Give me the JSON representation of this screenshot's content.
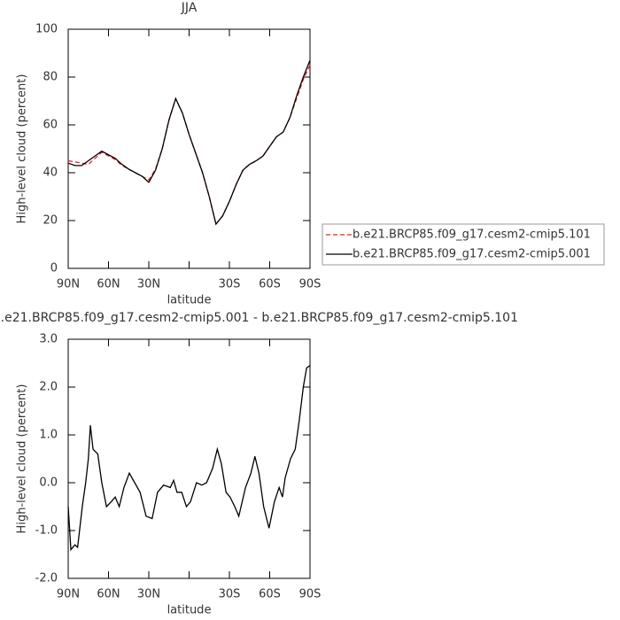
{
  "chart_data": [
    {
      "type": "line",
      "title": "JJA",
      "x_label": "latitude",
      "y_label": "High-level cloud (percent)",
      "xlim": [
        90,
        -90
      ],
      "ylim": [
        0,
        100
      ],
      "xticks": [
        {
          "value": 90,
          "label": "90N"
        },
        {
          "value": 60,
          "label": "60N"
        },
        {
          "value": 30,
          "label": "30N"
        },
        {
          "value": 0,
          "label": null
        },
        {
          "value": -30,
          "label": "30S"
        },
        {
          "value": -60,
          "label": "60S"
        },
        {
          "value": -90,
          "label": "90S"
        }
      ],
      "yticks": [
        0,
        20,
        40,
        60,
        80,
        100
      ],
      "legend": "right",
      "x": [
        90,
        85,
        80,
        75,
        70,
        65,
        60,
        55,
        50,
        45,
        40,
        35,
        30,
        25,
        20,
        15,
        10,
        5,
        0,
        -5,
        -10,
        -15,
        -20,
        -25,
        -30,
        -35,
        -40,
        -45,
        -50,
        -55,
        -60,
        -65,
        -70,
        -75,
        -80,
        -85,
        -90
      ],
      "series": [
        {
          "name": "b.e21.BRCP85.f09_g17.cesm2-cmip5.101",
          "color": "#e8231f",
          "line_style": "dashed",
          "values": [
            45,
            44.5,
            44,
            43.5,
            46,
            48.5,
            47,
            45.5,
            43,
            41.5,
            40,
            38.5,
            37,
            41.5,
            50,
            62,
            71,
            65,
            56,
            48,
            40,
            30,
            18.5,
            22,
            28,
            35,
            41,
            43.5,
            45,
            47,
            51,
            55,
            57,
            63,
            71,
            79,
            85
          ]
        },
        {
          "name": "b.e21.BRCP85.f09_g17.cesm2-cmip5.001",
          "color": "#000000",
          "line_style": "solid",
          "values": [
            44,
            43,
            43,
            45,
            47,
            49,
            47.5,
            46,
            43.5,
            41.5,
            40,
            38.5,
            36,
            41,
            50,
            62,
            71,
            65,
            56,
            48,
            40,
            30,
            18.5,
            22,
            28,
            35,
            41,
            43.5,
            45,
            47,
            51,
            55,
            57,
            63,
            72,
            80,
            87
          ]
        }
      ]
    },
    {
      "type": "line",
      "title": "b.e21.BRCP85.f09_g17.cesm2-cmip5.001 - b.e21.BRCP85.f09_g17.cesm2-cmip5.101",
      "x_label": "latitude",
      "y_label": "High-level cloud (percent)",
      "xlim": [
        90,
        -90
      ],
      "ylim": [
        -2,
        3
      ],
      "xticks": [
        {
          "value": 90,
          "label": "90N"
        },
        {
          "value": 60,
          "label": "60N"
        },
        {
          "value": 30,
          "label": "30N"
        },
        {
          "value": 0,
          "label": null
        },
        {
          "value": -30,
          "label": "30S"
        },
        {
          "value": -60,
          "label": "60S"
        },
        {
          "value": -90,
          "label": "90S"
        }
      ],
      "yticks": [
        {
          "value": -2,
          "label": "-2.0"
        },
        {
          "value": -1,
          "label": "-1.0"
        },
        {
          "value": 0,
          "label": "0.0"
        },
        {
          "value": 1,
          "label": "1.0"
        },
        {
          "value": 2,
          "label": "2.0"
        },
        {
          "value": 3,
          "label": "3.0"
        }
      ],
      "x": [
        90,
        88,
        85,
        83,
        79.5,
        77,
        75,
        73.5,
        71.5,
        68,
        65,
        61.5,
        58,
        55,
        52,
        48.5,
        44.5,
        40.5,
        36.5,
        32,
        27.5,
        23.5,
        19,
        14,
        11.5,
        9,
        5.5,
        2,
        -1,
        -5.5,
        -9.5,
        -13,
        -17.5,
        -21,
        -24,
        -27.5,
        -30.5,
        -34,
        -37,
        -42,
        -46,
        -49,
        -52,
        -55.5,
        -59.5,
        -63.5,
        -67,
        -69.5,
        -71.5,
        -75.5,
        -79,
        -82,
        -85,
        -87.5,
        -90
      ],
      "series": [
        {
          "color": "#000000",
          "line_style": "solid",
          "values": [
            -0.5,
            -1.4,
            -1.3,
            -1.35,
            -0.5,
            0,
            0.5,
            1.2,
            0.7,
            0.6,
            0,
            -0.5,
            -0.4,
            -0.3,
            -0.5,
            -0.1,
            0.2,
            0,
            -0.2,
            -0.7,
            -0.75,
            -0.2,
            -0.05,
            -0.1,
            0.05,
            -0.2,
            -0.2,
            -0.5,
            -0.4,
            0,
            -0.05,
            0,
            0.3,
            0.7,
            0.4,
            -0.2,
            -0.3,
            -0.5,
            -0.7,
            -0.1,
            0.2,
            0.55,
            0.2,
            -0.5,
            -0.95,
            -0.4,
            -0.1,
            -0.3,
            0.1,
            0.5,
            0.7,
            1.3,
            2,
            2.4,
            2.45
          ]
        }
      ]
    }
  ]
}
